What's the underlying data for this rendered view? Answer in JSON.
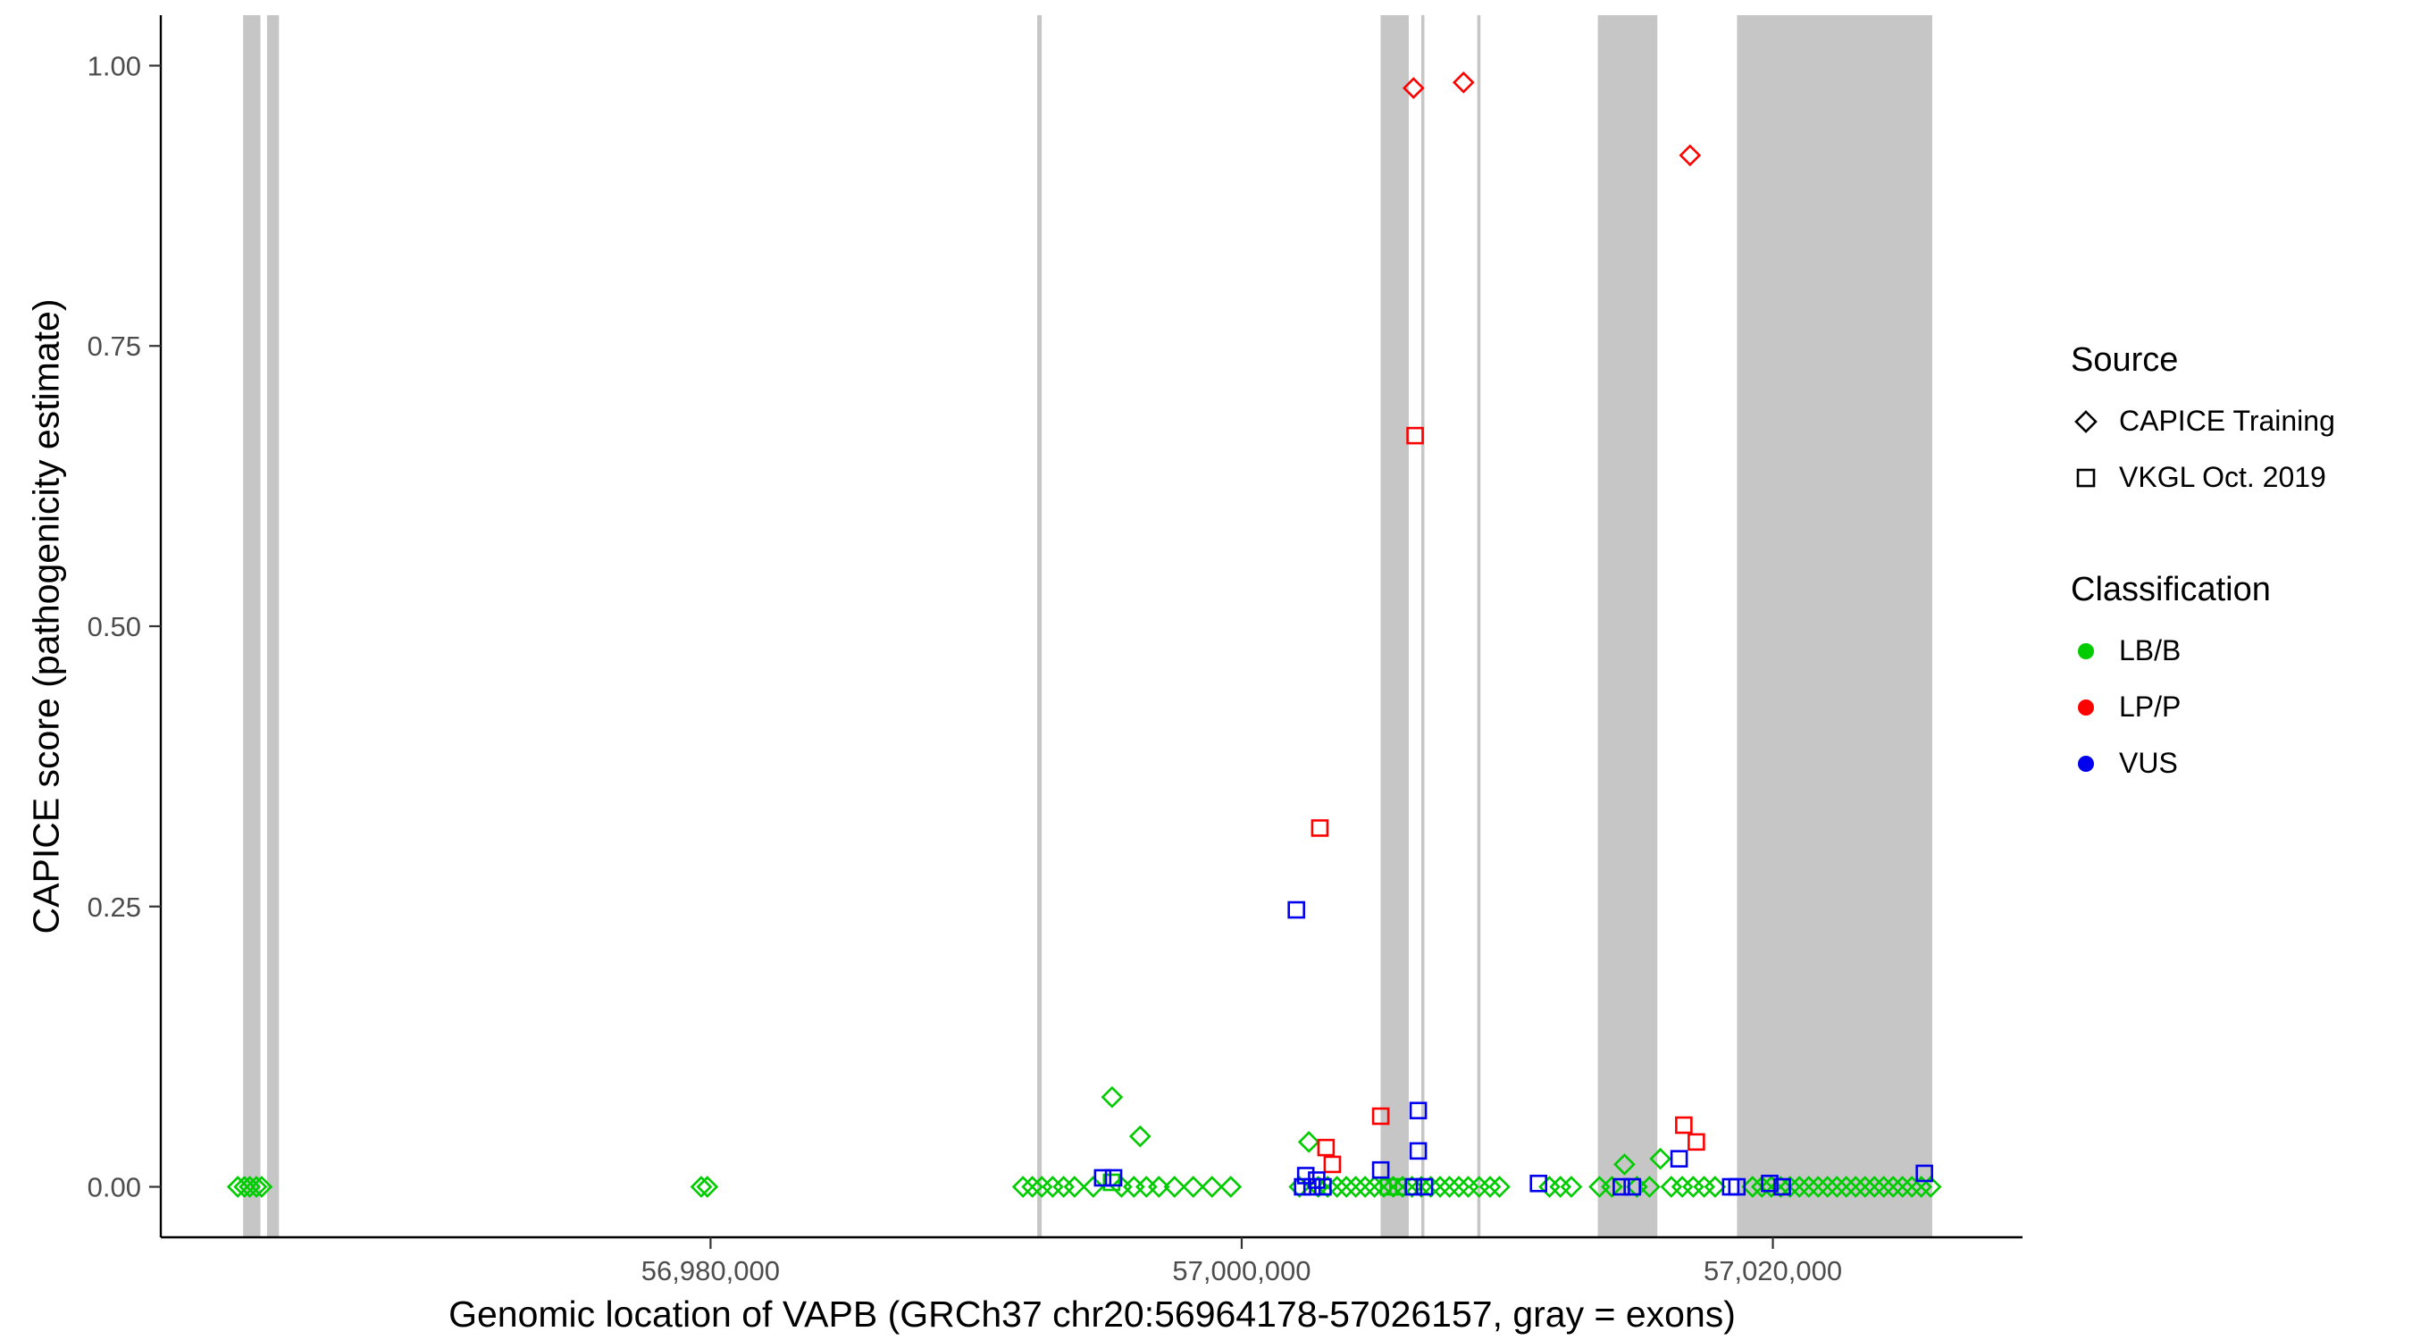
{
  "chart_data": {
    "type": "scatter",
    "title": "",
    "xlabel": "Genomic location of VAPB (GRCh37 chr20:56964178-57026157, gray = exons)",
    "ylabel": "CAPICE score (pathogenicity estimate)",
    "xlim": [
      56959300,
      57029400
    ],
    "ylim": [
      0,
      1
    ],
    "grid": false,
    "exon_color": "#c6c6c6",
    "x_ticks": [
      {
        "value": 56980000,
        "label": "56,980,000"
      },
      {
        "value": 57000000,
        "label": "57,000,000"
      },
      {
        "value": 57020000,
        "label": "57,020,000"
      }
    ],
    "y_ticks": [
      {
        "value": 0,
        "label": "0.00"
      },
      {
        "value": 0.25,
        "label": "0.25"
      },
      {
        "value": 0.5,
        "label": "0.50"
      },
      {
        "value": 0.75,
        "label": "0.75"
      },
      {
        "value": 1,
        "label": "1.00"
      }
    ],
    "exons": [
      {
        "start": 56962400,
        "end": 56963050
      },
      {
        "start": 56963300,
        "end": 56963750
      },
      {
        "start": 56992300,
        "end": 56992470
      },
      {
        "start": 57005230,
        "end": 57006290
      },
      {
        "start": 57006760,
        "end": 57006880
      },
      {
        "start": 57008870,
        "end": 57008990
      },
      {
        "start": 57013410,
        "end": 57015650
      },
      {
        "start": 57018650,
        "end": 57026000
      }
    ],
    "series": [
      {
        "name": "CAPICE Training LB/B",
        "source": "CAPICE Training",
        "classification": "LB/B",
        "marker": "diamond",
        "color": "#00cc00",
        "points": [
          [
            56962200,
            0
          ],
          [
            56962450,
            0
          ],
          [
            56962650,
            0
          ],
          [
            56962900,
            0
          ],
          [
            56963100,
            0
          ],
          [
            56979650,
            0
          ],
          [
            56979880,
            0
          ],
          [
            56991765,
            0
          ],
          [
            56992118,
            0
          ],
          [
            56992471,
            0
          ],
          [
            56992882,
            0
          ],
          [
            56993294,
            0
          ],
          [
            56993706,
            0
          ],
          [
            56994412,
            0
          ],
          [
            56995118,
            0.08
          ],
          [
            56996176,
            0.045
          ],
          [
            56995471,
            0
          ],
          [
            56995941,
            0
          ],
          [
            56996412,
            0
          ],
          [
            56996882,
            0
          ],
          [
            56997471,
            0
          ],
          [
            56998176,
            0
          ],
          [
            56998882,
            0
          ],
          [
            56999588,
            0
          ],
          [
            57002176,
            0
          ],
          [
            57002529,
            0.04
          ],
          [
            57002882,
            0
          ],
          [
            57003235,
            0
          ],
          [
            57003588,
            0
          ],
          [
            57003941,
            0
          ],
          [
            57004294,
            0
          ],
          [
            57004647,
            0
          ],
          [
            57005000,
            0
          ],
          [
            57005353,
            0
          ],
          [
            57005706,
            0
          ],
          [
            57006059,
            0
          ],
          [
            57006412,
            0
          ],
          [
            57006765,
            0
          ],
          [
            57007118,
            0
          ],
          [
            57007471,
            0
          ],
          [
            57007824,
            0
          ],
          [
            57008176,
            0
          ],
          [
            57008529,
            0
          ],
          [
            57008941,
            0
          ],
          [
            57009353,
            0
          ],
          [
            57009706,
            0
          ],
          [
            57011588,
            0
          ],
          [
            57012000,
            0
          ],
          [
            57012412,
            0
          ],
          [
            57013471,
            0
          ],
          [
            57013941,
            0
          ],
          [
            57014412,
            0.02
          ],
          [
            57014882,
            0
          ],
          [
            57015353,
            0
          ],
          [
            57015765,
            0.025
          ],
          [
            57016176,
            0
          ],
          [
            57016588,
            0
          ],
          [
            57017000,
            0
          ],
          [
            57017412,
            0
          ],
          [
            57017824,
            0
          ],
          [
            57019235,
            0
          ],
          [
            57019588,
            0
          ],
          [
            57019941,
            0
          ],
          [
            57020294,
            0
          ],
          [
            57020647,
            0
          ],
          [
            57021000,
            0
          ],
          [
            57021353,
            0
          ],
          [
            57021706,
            0
          ],
          [
            57022059,
            0
          ],
          [
            57022412,
            0
          ],
          [
            57022765,
            0
          ],
          [
            57023118,
            0
          ],
          [
            57023471,
            0
          ],
          [
            57023824,
            0
          ],
          [
            57024176,
            0
          ],
          [
            57024529,
            0
          ],
          [
            57024882,
            0
          ],
          [
            57025235,
            0
          ],
          [
            57025588,
            0
          ],
          [
            57025941,
            0
          ]
        ]
      },
      {
        "name": "CAPICE Training LP/P",
        "source": "CAPICE Training",
        "classification": "LP/P",
        "marker": "diamond",
        "color": "#ff0000",
        "points": [
          [
            57006470,
            0.98
          ],
          [
            57008353,
            0.985
          ],
          [
            57016882,
            0.92
          ]
        ]
      },
      {
        "name": "VKGL Oct. 2019 LB/B",
        "source": "VKGL Oct. 2019",
        "classification": "LB/B",
        "marker": "square",
        "color": "#00cc00",
        "points": [
          [
            56995100,
            0.004
          ],
          [
            57005529,
            0
          ],
          [
            57005882,
            0
          ]
        ]
      },
      {
        "name": "VKGL Oct. 2019 LP/P",
        "source": "VKGL Oct. 2019",
        "classification": "LP/P",
        "marker": "square",
        "color": "#ff0000",
        "points": [
          [
            57002941,
            0.32
          ],
          [
            57003176,
            0.035
          ],
          [
            57003412,
            0.02
          ],
          [
            57005235,
            0.063
          ],
          [
            57006529,
            0.67
          ],
          [
            57016647,
            0.055
          ],
          [
            57017118,
            0.04
          ]
        ]
      },
      {
        "name": "VKGL Oct. 2019 VUS",
        "source": "VKGL Oct. 2019",
        "classification": "VUS",
        "marker": "square",
        "color": "#0000ee",
        "points": [
          [
            56994765,
            0.008
          ],
          [
            56995176,
            0.008
          ],
          [
            57002059,
            0.247
          ],
          [
            57002294,
            0
          ],
          [
            57002412,
            0.01
          ],
          [
            57002647,
            0
          ],
          [
            57002824,
            0.006
          ],
          [
            57003059,
            0
          ],
          [
            57005235,
            0.015
          ],
          [
            57006470,
            0
          ],
          [
            57006647,
            0.068
          ],
          [
            57006647,
            0.032
          ],
          [
            57006882,
            0
          ],
          [
            57011176,
            0.003
          ],
          [
            57014294,
            0
          ],
          [
            57014706,
            0
          ],
          [
            57016470,
            0.025
          ],
          [
            57018412,
            0
          ],
          [
            57018647,
            0
          ],
          [
            57019882,
            0.003
          ],
          [
            57020353,
            0
          ],
          [
            57025706,
            0.012
          ]
        ]
      }
    ]
  },
  "legend": {
    "source_title": "Source",
    "source_items": [
      {
        "label": "CAPICE Training",
        "marker": "diamond"
      },
      {
        "label": "VKGL Oct. 2019",
        "marker": "square"
      }
    ],
    "classification_title": "Classification",
    "classification_items": [
      {
        "label": "LB/B",
        "color": "#00cc00"
      },
      {
        "label": "LP/P",
        "color": "#ff0000"
      },
      {
        "label": "VUS",
        "color": "#0000ee"
      }
    ]
  }
}
